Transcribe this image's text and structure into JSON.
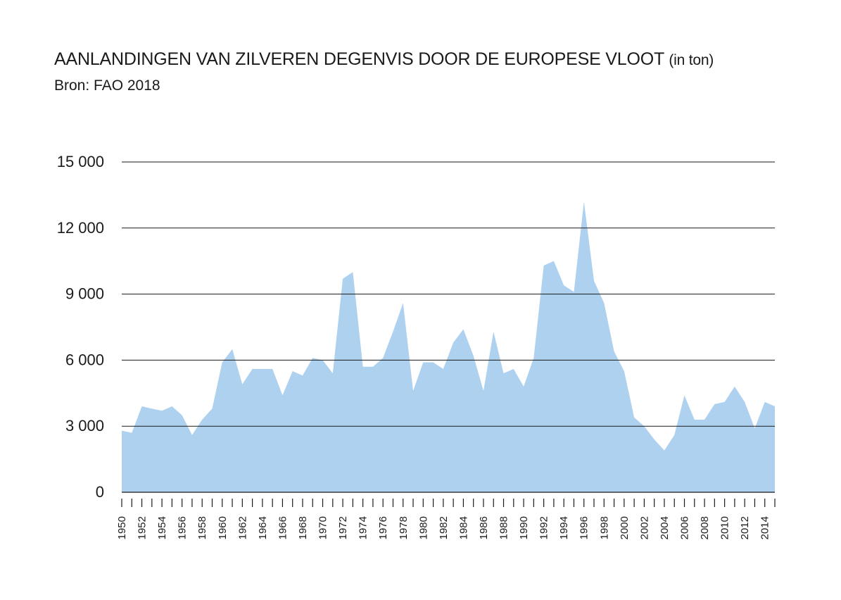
{
  "chart_data": {
    "type": "area",
    "title": "AANLANDINGEN VAN ZILVEREN DEGENVIS DOOR DE EUROPESE VLOOT",
    "title_unit": "(in ton)",
    "subtitle": "Bron: FAO 2018",
    "xlabel": "",
    "ylabel": "",
    "color": "#aed1ef",
    "grid": true,
    "xlim": [
      1950,
      2015
    ],
    "ylim": [
      0,
      15000
    ],
    "yticks": [
      0,
      3000,
      6000,
      9000,
      12000,
      15000
    ],
    "ytick_labels": [
      "0",
      "3 000",
      "6 000",
      "9 000",
      "12 000",
      "15 000"
    ],
    "xtick_labels": [
      "1950",
      "1952",
      "1954",
      "1956",
      "1958",
      "1960",
      "1962",
      "1964",
      "1966",
      "1968",
      "1970",
      "1972",
      "1974",
      "1976",
      "1978",
      "1980",
      "1982",
      "1984",
      "1986",
      "1988",
      "1990",
      "1992",
      "1994",
      "1996",
      "1998",
      "2000",
      "2002",
      "2004",
      "2006",
      "2008",
      "2010",
      "2012",
      "2014"
    ],
    "x": [
      1950,
      1951,
      1952,
      1953,
      1954,
      1955,
      1956,
      1957,
      1958,
      1959,
      1960,
      1961,
      1962,
      1963,
      1964,
      1965,
      1966,
      1967,
      1968,
      1969,
      1970,
      1971,
      1972,
      1973,
      1974,
      1975,
      1976,
      1977,
      1978,
      1979,
      1980,
      1981,
      1982,
      1983,
      1984,
      1985,
      1986,
      1987,
      1988,
      1989,
      1990,
      1991,
      1992,
      1993,
      1994,
      1995,
      1996,
      1997,
      1998,
      1999,
      2000,
      2001,
      2002,
      2003,
      2004,
      2005,
      2006,
      2007,
      2008,
      2009,
      2010,
      2011,
      2012,
      2013,
      2014,
      2015
    ],
    "values": [
      2800,
      2700,
      3900,
      3800,
      3700,
      3900,
      3500,
      2600,
      3300,
      3800,
      5900,
      6500,
      4900,
      5600,
      5600,
      5600,
      4400,
      5500,
      5300,
      6100,
      6000,
      5400,
      9700,
      10000,
      5700,
      5700,
      6100,
      7300,
      8600,
      4600,
      5900,
      5900,
      5600,
      6800,
      7400,
      6200,
      4600,
      7300,
      5400,
      5600,
      4800,
      6100,
      10300,
      10500,
      9400,
      9100,
      13200,
      9600,
      8600,
      6400,
      5500,
      3400,
      3000,
      2400,
      1900,
      2600,
      4400,
      3300,
      3300,
      4000,
      4100,
      4800,
      4100,
      2900,
      4100,
      3900
    ]
  }
}
